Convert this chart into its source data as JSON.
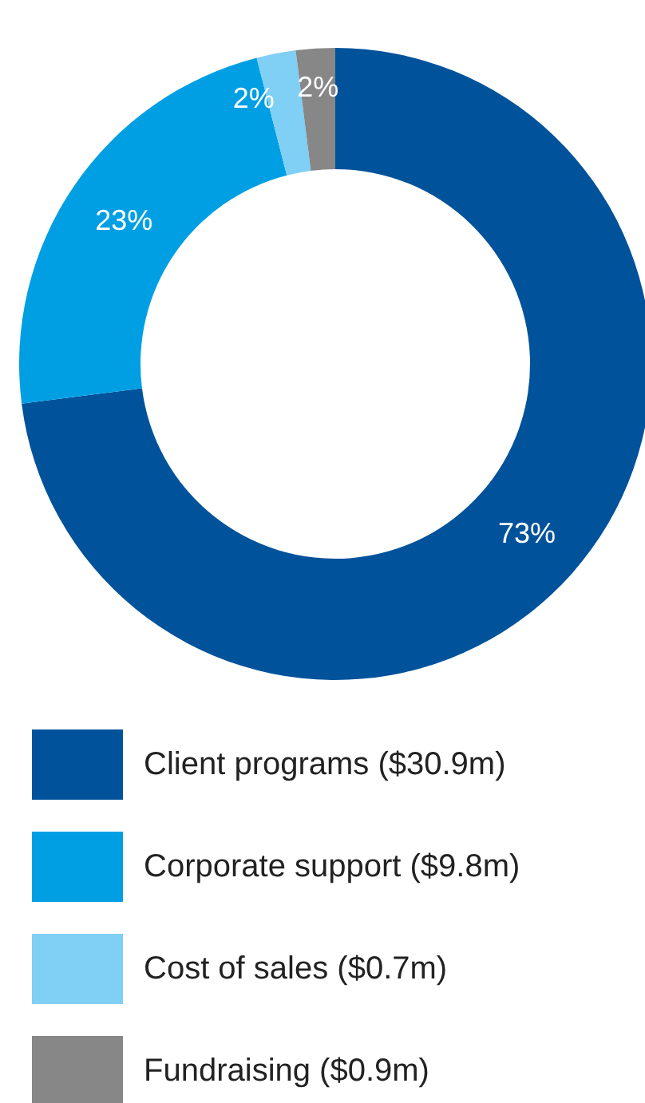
{
  "chart_data": {
    "type": "donut",
    "categories": [
      "Client programs ($30.9m)",
      "Corporate support ($9.8m)",
      "Cost of sales ($0.7m)",
      "Fundraising ($0.9m)"
    ],
    "values": [
      73,
      23,
      2,
      2
    ],
    "value_labels": [
      "73%",
      "23%",
      "2%",
      "2%"
    ],
    "colors": [
      "#00529b",
      "#009fe3",
      "#80cff5",
      "#878787"
    ],
    "legend": "bottom"
  }
}
